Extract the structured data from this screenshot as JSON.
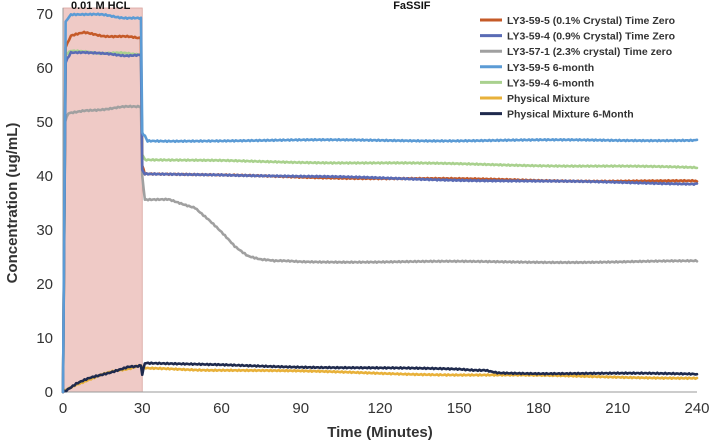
{
  "chart_data": {
    "type": "line",
    "xlabel": "Time (Minutes)",
    "ylabel": "Concentration (ug/mL)",
    "xlim": [
      0,
      240
    ],
    "ylim": [
      0,
      70
    ],
    "x_ticks": [
      0,
      30,
      60,
      90,
      120,
      150,
      180,
      210,
      240
    ],
    "y_ticks": [
      0,
      10,
      20,
      30,
      40,
      50,
      60,
      70
    ],
    "grid": "off",
    "legend_position": "top-right",
    "annotations": [
      {
        "text": "0.01 M HCL",
        "region": [
          0,
          30
        ],
        "color": "#eab8b3"
      },
      {
        "text": "FaSSIF"
      }
    ],
    "series": [
      {
        "name": "LY3-59-5 (0.1% Crystal) Time Zero",
        "color": "#c55a28",
        "points": [
          [
            0,
            0
          ],
          [
            1,
            64
          ],
          [
            3,
            66
          ],
          [
            8,
            66.5
          ],
          [
            15,
            66
          ],
          [
            22,
            65.8
          ],
          [
            29.5,
            65.6
          ],
          [
            30,
            42
          ],
          [
            31,
            40.3
          ],
          [
            60,
            40.1
          ],
          [
            90,
            39.8
          ],
          [
            120,
            39.6
          ],
          [
            150,
            39.4
          ],
          [
            180,
            39.2
          ],
          [
            210,
            39.1
          ],
          [
            240,
            39.0
          ]
        ]
      },
      {
        "name": "LY3-59-4 (0.9% Crystal) Time Zero",
        "color": "#5a6bb5",
        "points": [
          [
            0,
            0
          ],
          [
            1,
            61
          ],
          [
            3,
            62.8
          ],
          [
            8,
            63
          ],
          [
            15,
            62.6
          ],
          [
            22,
            62.4
          ],
          [
            29.5,
            62.3
          ],
          [
            30,
            41
          ],
          [
            31,
            40.5
          ],
          [
            60,
            40.3
          ],
          [
            90,
            39.9
          ],
          [
            120,
            39.6
          ],
          [
            150,
            39.3
          ],
          [
            180,
            39.0
          ],
          [
            210,
            38.8
          ],
          [
            240,
            38.6
          ]
        ]
      },
      {
        "name": "LY3-57-1 (2.3% crystal) Time zero",
        "color": "#a0a0a0",
        "points": [
          [
            0,
            0
          ],
          [
            0.8,
            50
          ],
          [
            2,
            51.5
          ],
          [
            8,
            52
          ],
          [
            15,
            52.4
          ],
          [
            22,
            52.7
          ],
          [
            29.5,
            53
          ],
          [
            30,
            40
          ],
          [
            31,
            35.5
          ],
          [
            40,
            35.6
          ],
          [
            50,
            34.2
          ],
          [
            55,
            32
          ],
          [
            60,
            29.5
          ],
          [
            65,
            27
          ],
          [
            70,
            25.3
          ],
          [
            75,
            24.5
          ],
          [
            80,
            24.2
          ],
          [
            90,
            24.2
          ],
          [
            120,
            24.1
          ],
          [
            150,
            24.1
          ],
          [
            180,
            24.1
          ],
          [
            210,
            24.1
          ],
          [
            240,
            24.2
          ]
        ]
      },
      {
        "name": "LY3-59-5 6-month",
        "color": "#5b9bd5",
        "points": [
          [
            0,
            0
          ],
          [
            1,
            68.5
          ],
          [
            3,
            69.8
          ],
          [
            8,
            70
          ],
          [
            15,
            69.8
          ],
          [
            22,
            69.4
          ],
          [
            29.5,
            69.1
          ],
          [
            30,
            48
          ],
          [
            31,
            47.5
          ],
          [
            32,
            46.4
          ],
          [
            40,
            46.5
          ],
          [
            60,
            46.6
          ],
          [
            90,
            46.6
          ],
          [
            120,
            46.6
          ],
          [
            150,
            46.6
          ],
          [
            180,
            46.6
          ],
          [
            210,
            46.6
          ],
          [
            240,
            46.7
          ]
        ]
      },
      {
        "name": "LY3-59-4 6-month",
        "color": "#a9d18e",
        "points": [
          [
            0,
            0
          ],
          [
            1,
            62.5
          ],
          [
            3,
            63.3
          ],
          [
            8,
            63
          ],
          [
            15,
            62.8
          ],
          [
            22,
            62.7
          ],
          [
            29.5,
            62.6
          ],
          [
            30,
            44
          ],
          [
            31,
            42.9
          ],
          [
            60,
            42.8
          ],
          [
            90,
            42.6
          ],
          [
            120,
            42.4
          ],
          [
            150,
            42.2
          ],
          [
            180,
            42.0
          ],
          [
            210,
            41.8
          ],
          [
            240,
            41.5
          ]
        ]
      },
      {
        "name": "Physical Mixture",
        "color": "#e8b13a",
        "points": [
          [
            0,
            0
          ],
          [
            5,
            1.4
          ],
          [
            10,
            2.4
          ],
          [
            15,
            3.2
          ],
          [
            20,
            3.9
          ],
          [
            25,
            4.4
          ],
          [
            29.5,
            4.8
          ],
          [
            30,
            4.5
          ],
          [
            32,
            4.3
          ],
          [
            60,
            4.1
          ],
          [
            90,
            3.8
          ],
          [
            120,
            3.5
          ],
          [
            150,
            3.2
          ],
          [
            180,
            3.0
          ],
          [
            210,
            2.8
          ],
          [
            240,
            2.6
          ]
        ]
      },
      {
        "name": "Physical Mixture 6-Month",
        "color": "#1f2a4d",
        "points": [
          [
            0,
            0
          ],
          [
            5,
            1.5
          ],
          [
            10,
            2.5
          ],
          [
            15,
            3.3
          ],
          [
            20,
            4.0
          ],
          [
            25,
            4.6
          ],
          [
            29.5,
            5.0
          ],
          [
            30,
            3.2
          ],
          [
            31,
            5.3
          ],
          [
            60,
            5.0
          ],
          [
            90,
            4.7
          ],
          [
            120,
            4.4
          ],
          [
            150,
            4.2
          ],
          [
            160,
            4.1
          ],
          [
            165,
            3.6
          ],
          [
            180,
            3.5
          ],
          [
            210,
            3.4
          ],
          [
            240,
            3.3
          ]
        ]
      }
    ]
  }
}
